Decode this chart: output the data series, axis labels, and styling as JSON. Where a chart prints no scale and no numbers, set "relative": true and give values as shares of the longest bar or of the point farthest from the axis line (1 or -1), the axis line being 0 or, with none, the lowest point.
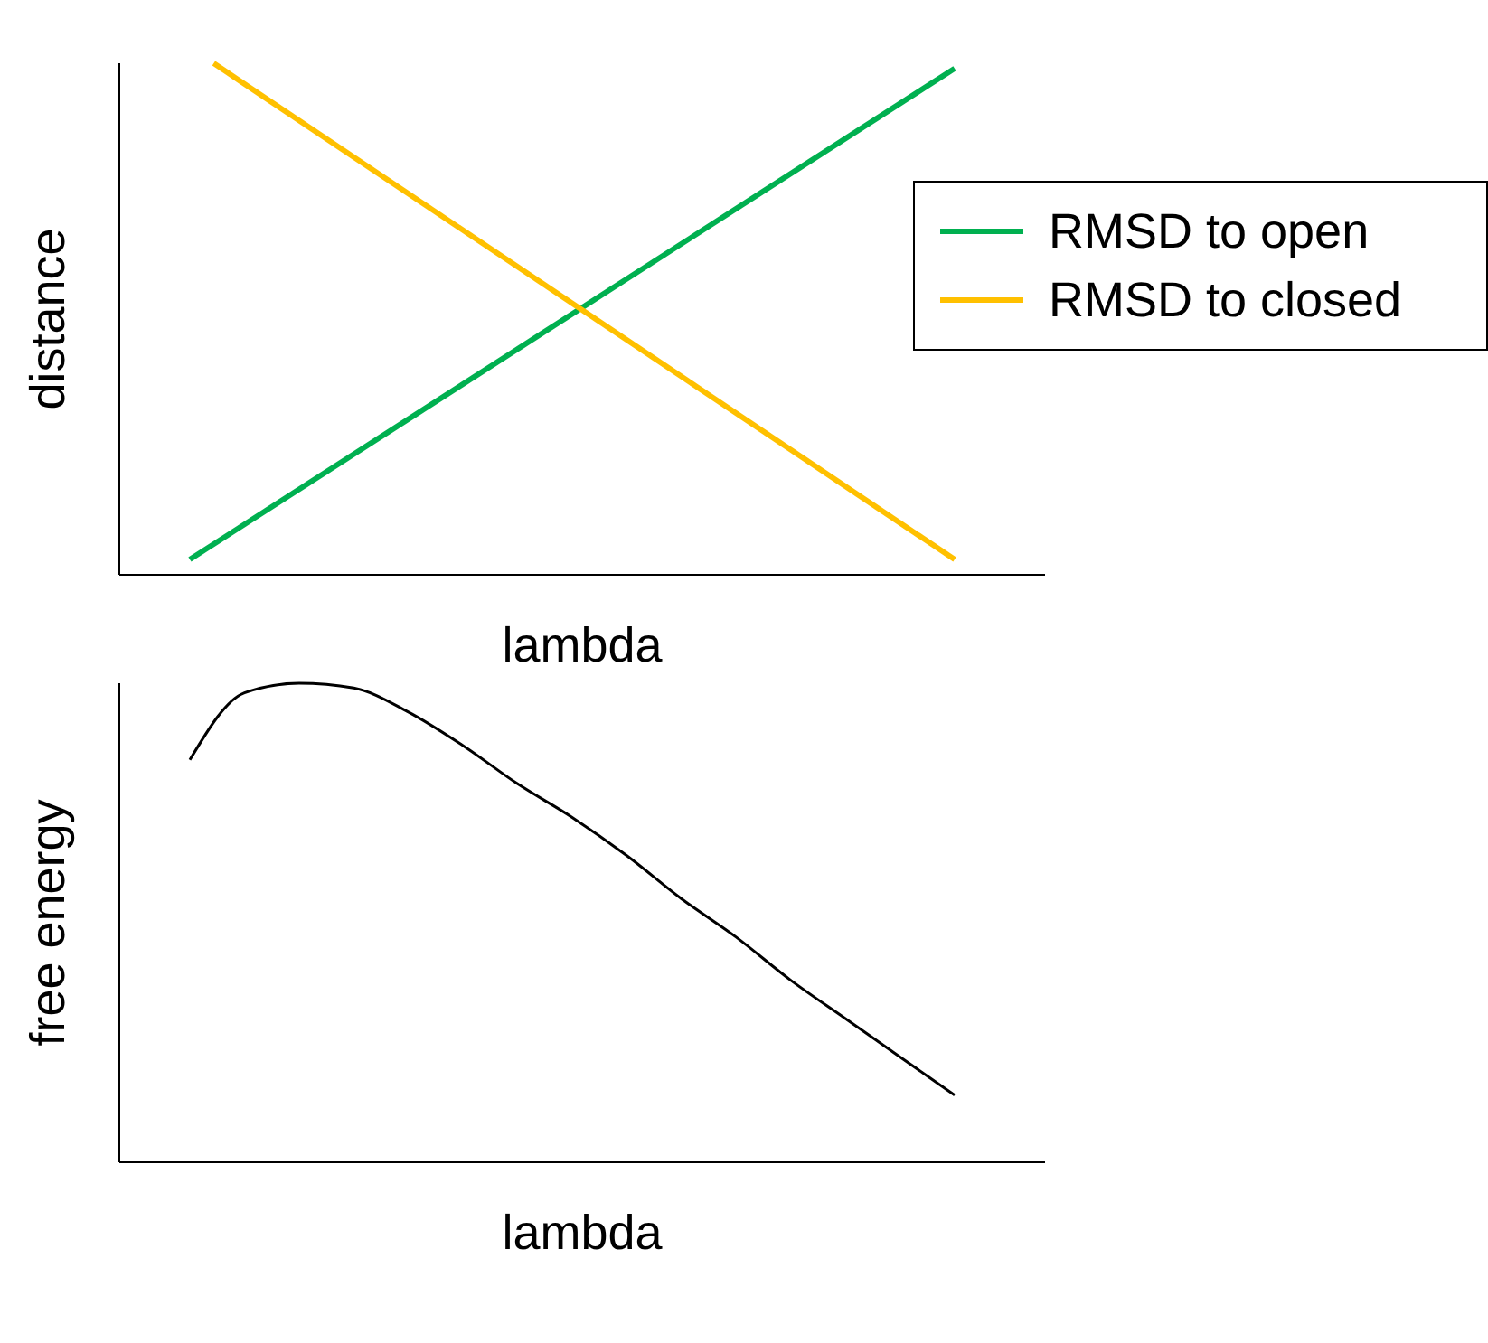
{
  "chart_data": [
    {
      "type": "line",
      "relative": true,
      "xlabel": "lambda",
      "ylabel": "distance",
      "legend": "right",
      "categories": [
        null,
        null,
        null,
        null,
        null,
        null,
        null,
        null,
        null,
        null,
        null,
        null,
        null,
        null,
        null,
        null,
        null,
        null,
        null,
        null,
        null,
        null,
        null,
        null,
        null,
        null,
        null,
        null,
        null,
        null,
        null,
        null,
        null
      ],
      "series": [
        {
          "name": "RMSD to open",
          "color": "#00b050",
          "values": [
            0.03,
            null,
            null,
            null,
            null,
            null,
            null,
            null,
            null,
            null,
            null,
            null,
            null,
            null,
            null,
            null,
            null,
            null,
            null,
            null,
            null,
            null,
            null,
            null,
            null,
            null,
            null,
            null,
            null,
            null,
            null,
            null,
            0.99
          ]
        },
        {
          "name": "RMSD to closed",
          "color": "#ffc000",
          "values": [
            null,
            1,
            null,
            null,
            null,
            null,
            null,
            null,
            null,
            null,
            null,
            null,
            null,
            null,
            null,
            null,
            null,
            null,
            null,
            null,
            null,
            null,
            null,
            null,
            null,
            null,
            null,
            null,
            null,
            null,
            null,
            null,
            0.03
          ]
        }
      ]
    },
    {
      "type": "line",
      "relative": true,
      "xlabel": "lambda",
      "ylabel": "free energy",
      "legend": false,
      "categories": [
        null,
        null,
        null,
        null,
        null,
        null,
        null,
        null,
        null,
        null,
        null,
        null,
        null,
        null,
        null
      ],
      "series": [
        {
          "color": "#000000",
          "values": [
            0.84,
            0.98,
            1,
            0.99,
            0.94,
            0.87,
            0.79,
            0.72,
            0.64,
            0.55,
            0.47,
            0.38,
            0.3,
            0.22,
            0.14
          ]
        }
      ]
    }
  ]
}
